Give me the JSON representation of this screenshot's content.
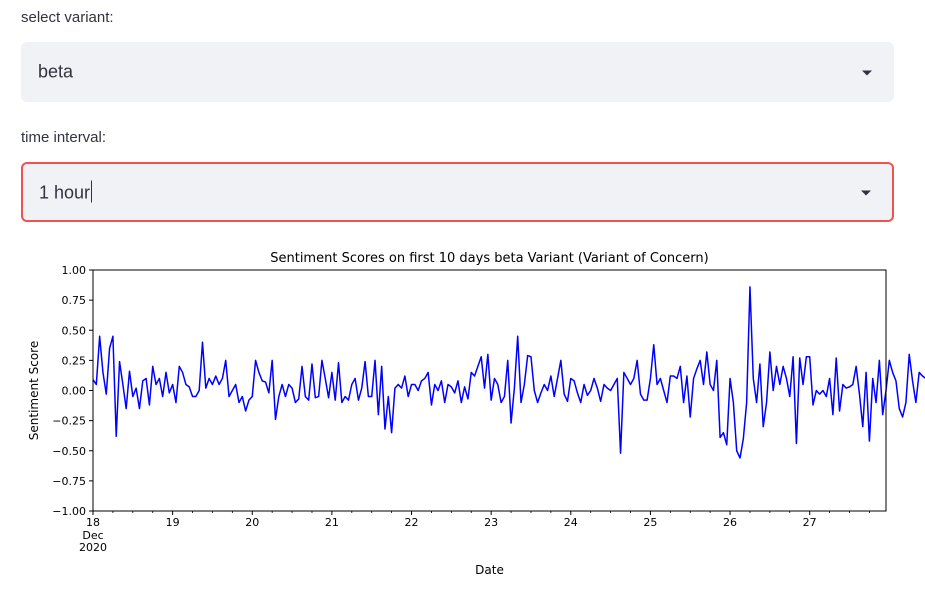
{
  "variant_select": {
    "label": "select variant:",
    "value": "beta",
    "icon": "chevron-down-icon"
  },
  "interval_select": {
    "label": "time interval:",
    "value": "1 hour",
    "icon": "chevron-down-icon",
    "state": "focused",
    "focus_color": "#ef5350"
  },
  "chart_data": {
    "type": "line",
    "title": "Sentiment Scores on first 10 days beta Variant (Variant of Concern)",
    "xlabel": "Date",
    "ylabel": "Sentiment Score",
    "ylim": [
      -1.0,
      1.0
    ],
    "xlim": [
      0,
      239
    ],
    "yticks": [
      "1.00",
      "0.75",
      "0.50",
      "0.25",
      "0.00",
      "−0.25",
      "−0.50",
      "−0.75",
      "−1.00"
    ],
    "xticks": [
      "18",
      "19",
      "20",
      "21",
      "22",
      "23",
      "24",
      "25",
      "26",
      "27"
    ],
    "xtick_sub": [
      "Dec",
      "2020"
    ],
    "grid": false,
    "line_color": "#0000ff",
    "series": [
      {
        "x_unit": "hours since 2020-12-18 00:00",
        "values": [
          0.09,
          0.05,
          0.45,
          0.15,
          -0.03,
          0.35,
          0.45,
          -0.38,
          0.24,
          0.05,
          -0.15,
          0.16,
          -0.05,
          0.02,
          -0.15,
          0.08,
          0.1,
          -0.12,
          0.2,
          0.05,
          0.1,
          -0.05,
          0.15,
          -0.02,
          0.05,
          -0.1,
          0.2,
          0.15,
          0.05,
          0.03,
          -0.05,
          -0.05,
          0.0,
          0.4,
          0.02,
          0.1,
          0.05,
          0.12,
          0.05,
          0.1,
          0.25,
          -0.05,
          0.0,
          0.05,
          -0.1,
          -0.05,
          -0.17,
          -0.08,
          -0.05,
          0.25,
          0.15,
          0.08,
          0.07,
          -0.02,
          0.25,
          -0.24,
          -0.05,
          0.05,
          -0.05,
          0.05,
          0.02,
          -0.1,
          -0.07,
          0.2,
          -0.05,
          -0.08,
          0.22,
          -0.06,
          -0.05,
          0.25,
          0.1,
          -0.06,
          0.15,
          -0.08,
          0.23,
          -0.1,
          -0.05,
          -0.08,
          0.05,
          0.1,
          -0.08,
          0.02,
          0.24,
          -0.05,
          -0.05,
          0.25,
          -0.2,
          0.2,
          -0.32,
          -0.05,
          -0.35,
          0.02,
          0.05,
          0.02,
          0.12,
          -0.05,
          0.05,
          0.05,
          0.0,
          0.08,
          0.1,
          0.15,
          -0.12,
          0.05,
          0.0,
          0.08,
          -0.1,
          0.05,
          0.03,
          -0.02,
          0.08,
          -0.1,
          0.03,
          -0.07,
          0.15,
          0.12,
          0.2,
          0.28,
          0.02,
          0.3,
          -0.08,
          0.1,
          0.05,
          -0.1,
          -0.05,
          0.25,
          -0.27,
          0.02,
          0.45,
          -0.1,
          0.05,
          0.29,
          0.28,
          0.0,
          -0.1,
          -0.02,
          0.05,
          0.0,
          0.12,
          -0.05,
          0.1,
          0.25,
          -0.03,
          -0.09,
          0.1,
          0.08,
          -0.02,
          -0.1,
          0.05,
          -0.04,
          0.0,
          0.1,
          0.02,
          -0.09,
          0.05,
          0.02,
          0.0,
          0.05,
          0.1,
          -0.52,
          0.15,
          0.1,
          0.05,
          0.1,
          0.25,
          -0.03,
          -0.08,
          -0.08,
          0.1,
          0.38,
          0.05,
          0.1,
          0.0,
          -0.1,
          0.12,
          0.12,
          0.1,
          0.2,
          -0.1,
          0.12,
          -0.22,
          0.1,
          0.18,
          0.25,
          0.05,
          0.32,
          0.05,
          0.0,
          0.25,
          -0.39,
          -0.35,
          -0.45,
          0.1,
          -0.1,
          -0.5,
          -0.56,
          -0.4,
          -0.1,
          0.86,
          0.1,
          -0.1,
          0.22,
          -0.3,
          -0.1,
          0.32,
          0.0,
          0.2,
          0.05,
          0.2,
          0.1,
          -0.05,
          0.28,
          -0.44,
          0.27,
          0.05,
          0.28,
          0.28,
          -0.12,
          0.0,
          -0.03,
          0.0,
          -0.05,
          0.1,
          -0.2,
          0.27,
          -0.17,
          0.05,
          0.02,
          0.03,
          0.05,
          0.2,
          -0.03,
          -0.3,
          0.15,
          -0.42,
          0.1,
          -0.1,
          0.25,
          -0.2,
          0.0,
          0.25,
          0.15,
          0.08,
          -0.15,
          -0.22,
          -0.1,
          0.3,
          0.08,
          -0.1,
          0.15,
          0.12,
          0.1,
          0.25
        ]
      }
    ]
  }
}
